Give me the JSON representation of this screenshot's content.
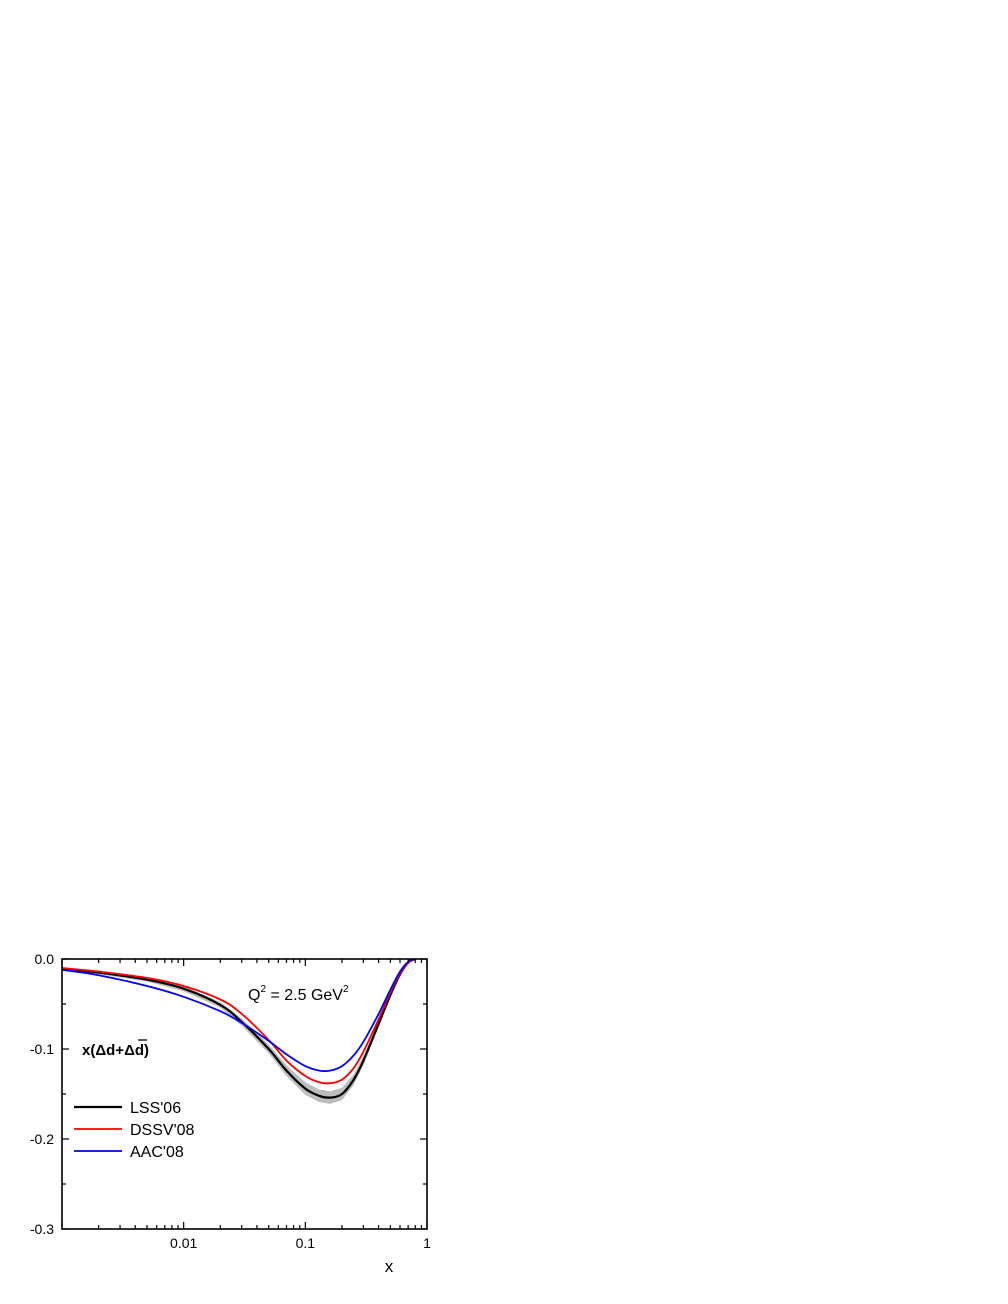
{
  "chart_data": {
    "type": "line",
    "xlabel": "x",
    "ylabel": "",
    "x_scale": "log",
    "xlim": [
      0.001,
      1
    ],
    "ylim": [
      -0.3,
      0.0
    ],
    "x_ticks": [
      {
        "value": 0.01,
        "label": "0.01"
      },
      {
        "value": 0.1,
        "label": "0.1"
      },
      {
        "value": 1,
        "label": "1"
      }
    ],
    "y_ticks": [
      {
        "value": 0.0,
        "label": "0.0"
      },
      {
        "value": -0.1,
        "label": "-0.1"
      },
      {
        "value": -0.2,
        "label": "-0.2"
      },
      {
        "value": -0.3,
        "label": "-0.3"
      }
    ],
    "annotations": {
      "q2_prefix": "Q",
      "q2_sup": "2",
      "q2_middle": " = 2.5 GeV",
      "q2_unit_sup": "2",
      "dist_prefix": "x(",
      "dist_delta1": "Δd+",
      "dist_delta2": "Δ",
      "dist_dbar": "d",
      "dist_suffix": ")"
    },
    "legend_position": "lower-left",
    "grid": false,
    "x": [
      0.001,
      0.002,
      0.005,
      0.01,
      0.02,
      0.03,
      0.05,
      0.07,
      0.1,
      0.13,
      0.16,
      0.2,
      0.25,
      0.3,
      0.4,
      0.5,
      0.6,
      0.7,
      0.8
    ],
    "series": [
      {
        "name": "LSS'06",
        "color": "#000000",
        "values": [
          -0.011,
          -0.015,
          -0.023,
          -0.033,
          -0.051,
          -0.07,
          -0.1,
          -0.124,
          -0.144,
          -0.152,
          -0.154,
          -0.15,
          -0.134,
          -0.113,
          -0.072,
          -0.04,
          -0.017,
          -0.004,
          0.0
        ],
        "band_upper": [
          -0.009,
          -0.013,
          -0.021,
          -0.03,
          -0.048,
          -0.066,
          -0.095,
          -0.118,
          -0.137,
          -0.145,
          -0.147,
          -0.143,
          -0.128,
          -0.108,
          -0.068,
          -0.037,
          -0.015,
          -0.003,
          0.0
        ],
        "band_lower": [
          -0.013,
          -0.017,
          -0.025,
          -0.036,
          -0.054,
          -0.074,
          -0.105,
          -0.13,
          -0.151,
          -0.159,
          -0.161,
          -0.157,
          -0.14,
          -0.118,
          -0.076,
          -0.043,
          -0.019,
          -0.005,
          0.0
        ]
      },
      {
        "name": "DSSV'08",
        "color": "#ff0000",
        "values": [
          -0.01,
          -0.014,
          -0.021,
          -0.03,
          -0.045,
          -0.061,
          -0.09,
          -0.113,
          -0.13,
          -0.137,
          -0.138,
          -0.134,
          -0.121,
          -0.103,
          -0.067,
          -0.037,
          -0.016,
          -0.004,
          0.0
        ]
      },
      {
        "name": "AAC'08",
        "color": "#0000ff",
        "values": [
          -0.012,
          -0.018,
          -0.03,
          -0.042,
          -0.058,
          -0.071,
          -0.091,
          -0.106,
          -0.119,
          -0.124,
          -0.124,
          -0.119,
          -0.107,
          -0.092,
          -0.061,
          -0.034,
          -0.014,
          -0.003,
          0.0
        ]
      }
    ]
  }
}
